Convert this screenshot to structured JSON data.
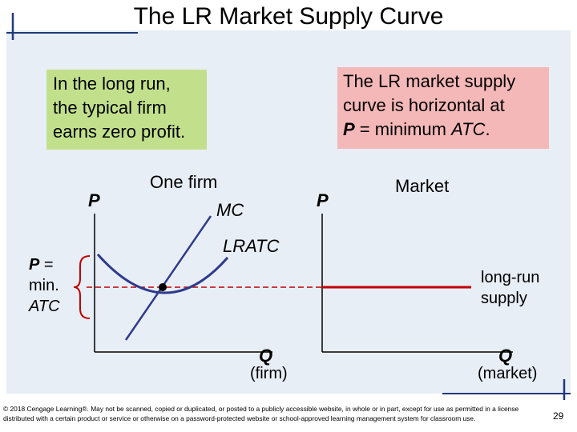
{
  "slide": {
    "title": "The LR Market Supply Curve",
    "page_number": "29",
    "copyright": "© 2018 Cengage Learning®. May not be scanned, copied or duplicated, or posted to a publicly accessible website, in whole or in part, except for use as permitted in a license distributed with a certain product or service or otherwise on a password-protected website or school-approved learning management system for classroom use."
  },
  "callouts": {
    "left": {
      "lines": [
        "In the long run,",
        "the typical firm",
        "earns zero profit."
      ],
      "color": "#c2e08c"
    },
    "right": {
      "line1": "The LR market supply",
      "line2": "curve is horizontal at",
      "line3_p": "P",
      "line3_mid": " = minimum ",
      "line3_atc": "ATC",
      "line3_end": ".",
      "color": "#f5b8b8"
    }
  },
  "firm_graph": {
    "heading": "One firm",
    "y_axis_label": "P",
    "x_axis_label": "Q",
    "x_axis_sublabel": "(firm)",
    "mc_label": "MC",
    "lratc_label": "LRATC",
    "price_label_p": "P",
    "price_label_eq": " =",
    "price_label_min": "min.",
    "price_label_atc": "ATC"
  },
  "market_graph": {
    "heading": "Market",
    "y_axis_label": "P",
    "x_axis_label": "Q",
    "x_axis_sublabel": "(market)",
    "supply_label_1": "long-run",
    "supply_label_2": "supply"
  },
  "colors": {
    "mc_curve": "#2e3a8c",
    "lratc_curve": "#2e3a8c",
    "supply_line": "#c00000",
    "dashed_line": "#c00000",
    "brace": "#c00000",
    "decor_bar": "#1f3a7a"
  }
}
